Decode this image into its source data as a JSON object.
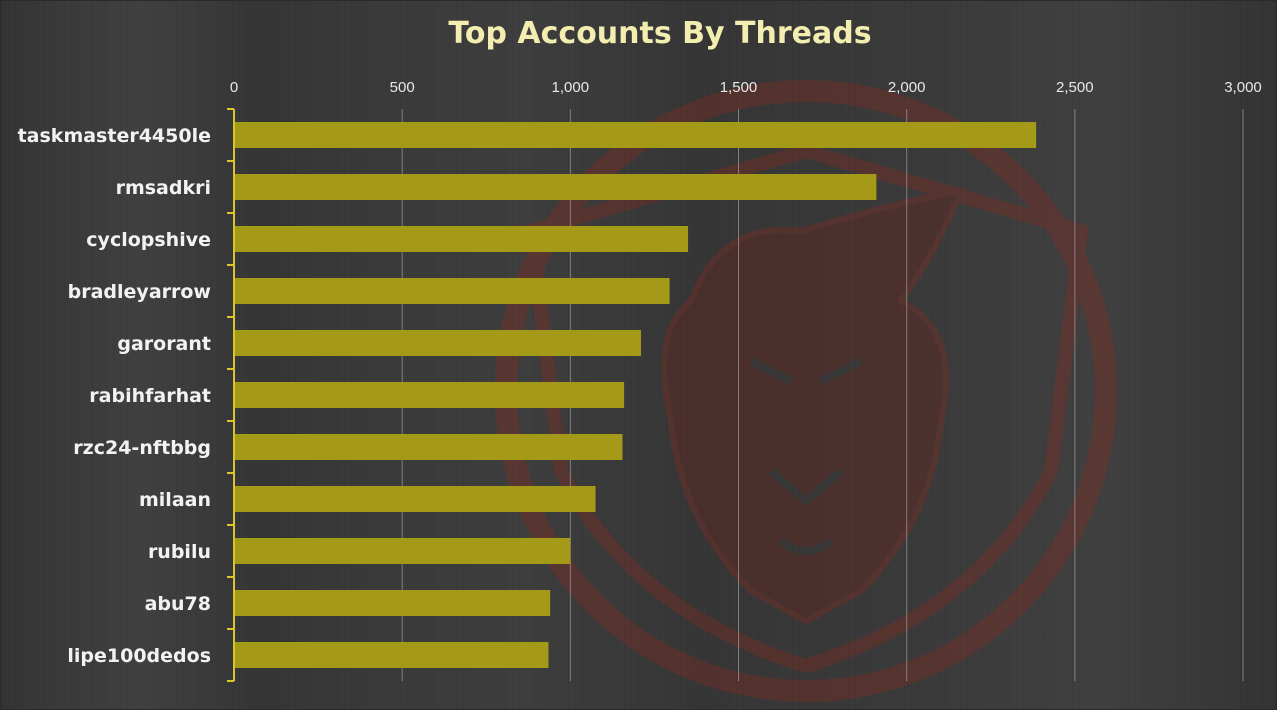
{
  "chart_data": {
    "type": "bar",
    "orientation": "horizontal",
    "title": "Top Accounts By Threads",
    "categories": [
      "taskmaster4450le",
      "rmsadkri",
      "cyclopshive",
      "bradleyarrow",
      "garorant",
      "rabihfarhat",
      "rzc24-nftbbg",
      "milaan",
      "rubilu",
      "abu78",
      "lipe100dedos"
    ],
    "values": [
      2385,
      1910,
      1350,
      1295,
      1210,
      1160,
      1155,
      1075,
      1000,
      940,
      935
    ],
    "xticks": [
      "0",
      "500",
      "1,000",
      "1,500",
      "2,000",
      "2,500",
      "3,000"
    ],
    "xlim": [
      0,
      3000
    ],
    "x_axis_position": "top",
    "grid": true,
    "colors": {
      "bar": "#a59a17",
      "title": "#f3eeb0",
      "axis": "#d9c62a",
      "grid": "#b8b8b8",
      "watermark": "#7a2a22"
    }
  }
}
